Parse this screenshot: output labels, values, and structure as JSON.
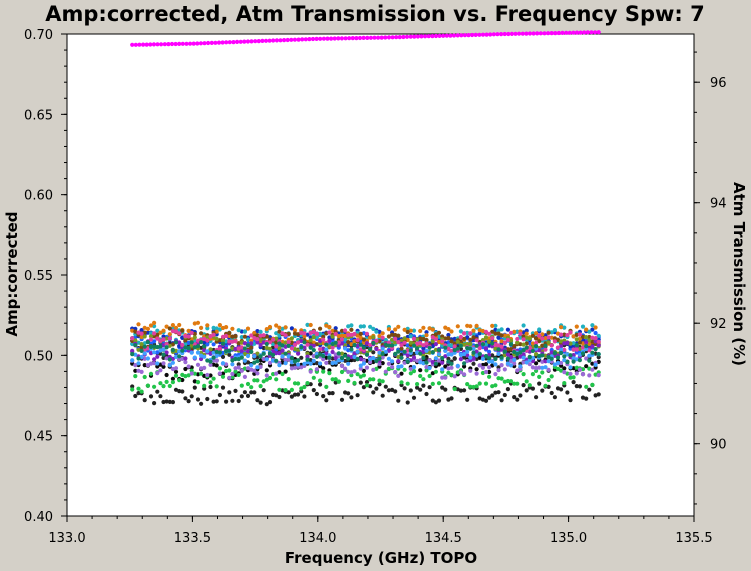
{
  "chart_data": {
    "type": "scatter",
    "title": "Amp:corrected, Atm Transmission vs. Frequency Spw: 7",
    "xlabel": "Frequency (GHz) TOPO",
    "ylabel": "Amp:corrected",
    "y2label": "Atm Transmission (%)",
    "xlim": [
      133.0,
      135.5
    ],
    "ylim": [
      0.4,
      0.7
    ],
    "y2lim": [
      88.8,
      96.8
    ],
    "x_ticks": [
      133.0,
      133.5,
      134.0,
      134.5,
      135.0,
      135.5
    ],
    "x_tick_labels": [
      "133.0",
      "133.5",
      "134.0",
      "134.5",
      "135.0",
      "135.5"
    ],
    "y_ticks": [
      0.4,
      0.45,
      0.5,
      0.55,
      0.6,
      0.65,
      0.7
    ],
    "y_tick_labels": [
      "0.40",
      "0.45",
      "0.50",
      "0.55",
      "0.60",
      "0.65",
      "0.70"
    ],
    "y2_ticks": [
      90,
      92,
      94,
      96
    ],
    "y2_tick_labels": [
      "90",
      "92",
      "94",
      "96"
    ],
    "grid": false,
    "legend": "none",
    "x_range_data": [
      133.26,
      135.12
    ],
    "series": [
      {
        "color": "#0a0a0a",
        "center": [
          0.493,
          0.488,
          0.49,
          0.495,
          0.497,
          0.495,
          0.492,
          0.496,
          0.495,
          0.492
        ]
      },
      {
        "color": "#222222",
        "center": [
          0.477,
          0.475,
          0.474,
          0.476,
          0.478,
          0.477,
          0.475,
          0.477,
          0.479,
          0.476
        ]
      },
      {
        "color": "#2a2a2a",
        "center": [
          0.505,
          0.503,
          0.5,
          0.499,
          0.501,
          0.504,
          0.502,
          0.498,
          0.5,
          0.504
        ]
      },
      {
        "color": "#21c44a",
        "center": [
          0.483,
          0.485,
          0.487,
          0.484,
          0.486,
          0.488,
          0.485,
          0.484,
          0.487,
          0.486
        ]
      },
      {
        "color": "#9b6ad6",
        "center": [
          0.492,
          0.493,
          0.491,
          0.494,
          0.495,
          0.493,
          0.492,
          0.494,
          0.495,
          0.493
        ]
      },
      {
        "color": "#2060ff",
        "center": [
          0.508,
          0.507,
          0.506,
          0.508,
          0.509,
          0.507,
          0.506,
          0.508,
          0.507,
          0.508
        ]
      },
      {
        "color": "#1030c0",
        "center": [
          0.511,
          0.51,
          0.509,
          0.511,
          0.512,
          0.51,
          0.509,
          0.511,
          0.51,
          0.511
        ]
      },
      {
        "color": "#20b0c0",
        "center": [
          0.513,
          0.512,
          0.511,
          0.513,
          0.514,
          0.512,
          0.511,
          0.513,
          0.514,
          0.513
        ]
      },
      {
        "color": "#e07a10",
        "center": [
          0.514,
          0.516,
          0.513,
          0.514,
          0.513,
          0.512,
          0.512,
          0.513,
          0.512,
          0.512
        ]
      },
      {
        "color": "#7a4a10",
        "center": [
          0.51,
          0.511,
          0.509,
          0.51,
          0.511,
          0.509,
          0.508,
          0.51,
          0.509,
          0.51
        ]
      },
      {
        "color": "#7a9a20",
        "center": [
          0.506,
          0.507,
          0.505,
          0.506,
          0.507,
          0.505,
          0.504,
          0.506,
          0.505,
          0.506
        ]
      },
      {
        "color": "#8020c0",
        "center": [
          0.503,
          0.504,
          0.502,
          0.503,
          0.504,
          0.502,
          0.501,
          0.503,
          0.502,
          0.503
        ]
      },
      {
        "color": "#e040a0",
        "center": [
          0.509,
          0.51,
          0.508,
          0.509,
          0.51,
          0.508,
          0.507,
          0.509,
          0.508,
          0.509
        ]
      },
      {
        "color": "#40a0ff",
        "center": [
          0.499,
          0.5,
          0.498,
          0.499,
          0.5,
          0.498,
          0.497,
          0.499,
          0.498,
          0.499
        ]
      },
      {
        "color": "#108060",
        "center": [
          0.502,
          0.503,
          0.501,
          0.502,
          0.503,
          0.501,
          0.5,
          0.502,
          0.501,
          0.502
        ]
      }
    ],
    "atm_transmission": {
      "color": "#ff00ff",
      "x": [
        133.26,
        133.5,
        133.75,
        134.0,
        134.25,
        134.5,
        134.75,
        135.0,
        135.12
      ],
      "y": [
        96.62,
        96.64,
        96.68,
        96.72,
        96.74,
        96.77,
        96.8,
        96.82,
        96.83
      ]
    }
  }
}
